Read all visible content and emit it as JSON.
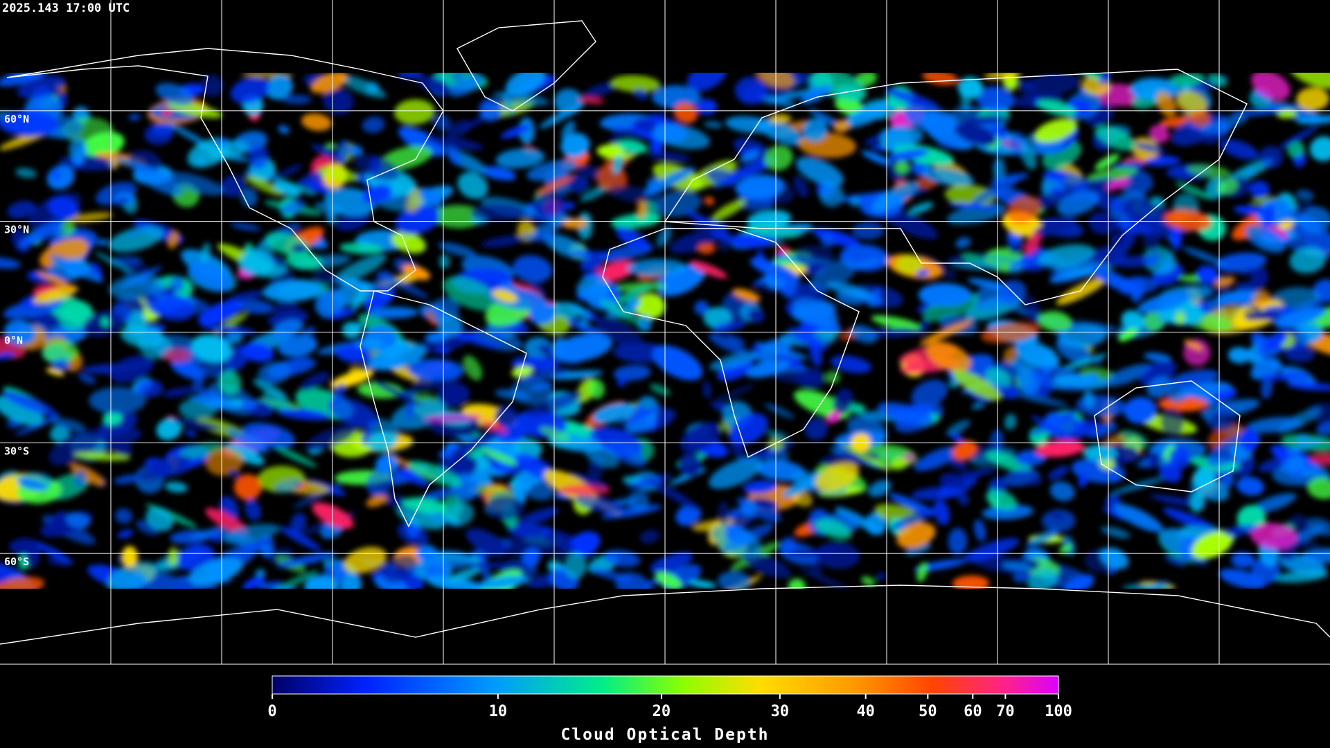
{
  "header": {
    "title": "2025.143 17:00 UTC"
  },
  "map": {
    "latitudes": [
      {
        "value": 60,
        "label": "60°N"
      },
      {
        "value": 30,
        "label": "30°N"
      },
      {
        "value": 0,
        "label": "0°N"
      },
      {
        "value": -30,
        "label": "30°S"
      },
      {
        "value": -60,
        "label": "60°S"
      }
    ]
  },
  "colorbar": {
    "label": "Cloud Optical Depth",
    "range": [
      0,
      100
    ],
    "ticks": [
      0,
      10,
      20,
      30,
      40,
      50,
      60,
      70,
      100
    ]
  }
}
